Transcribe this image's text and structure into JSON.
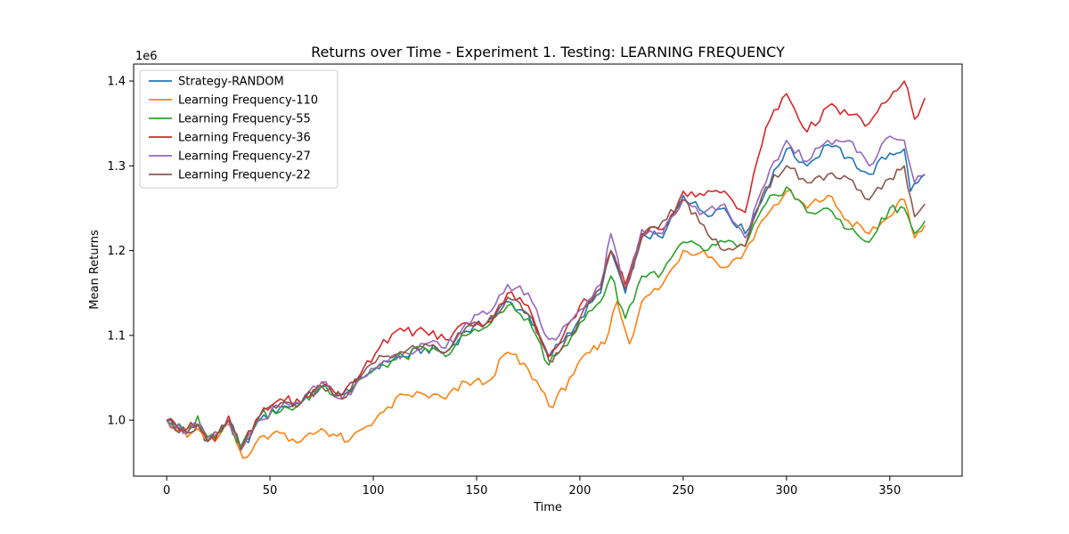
{
  "chart_data": {
    "type": "line",
    "title": "Returns over Time - Experiment 1. Testing: LEARNING FREQUENCY",
    "xlabel": "Time",
    "ylabel": "Mean Returns",
    "offset_label": "1e6",
    "xlim": [
      -16,
      385
    ],
    "ylim": [
      0.934,
      1.42
    ],
    "x_ticks": [
      0,
      50,
      100,
      150,
      200,
      250,
      300,
      350
    ],
    "y_ticks": [
      1.0,
      1.1,
      1.2,
      1.3,
      1.4
    ],
    "y_tick_labels": [
      "1.0",
      "1.1",
      "1.2",
      "1.3",
      "1.4"
    ],
    "grid": false,
    "legend_position": "top-left",
    "series": [
      {
        "name": "Strategy-RANDOM",
        "color": "#1f77b4",
        "points": [
          [
            0,
            1.0
          ],
          [
            10,
            0.985
          ],
          [
            15,
            0.995
          ],
          [
            20,
            0.975
          ],
          [
            25,
            0.985
          ],
          [
            30,
            1.0
          ],
          [
            36,
            0.965
          ],
          [
            45,
            1.0
          ],
          [
            55,
            1.015
          ],
          [
            65,
            1.02
          ],
          [
            75,
            1.04
          ],
          [
            85,
            1.03
          ],
          [
            95,
            1.05
          ],
          [
            105,
            1.07
          ],
          [
            115,
            1.075
          ],
          [
            125,
            1.085
          ],
          [
            135,
            1.08
          ],
          [
            145,
            1.105
          ],
          [
            155,
            1.115
          ],
          [
            165,
            1.14
          ],
          [
            175,
            1.125
          ],
          [
            185,
            1.075
          ],
          [
            190,
            1.09
          ],
          [
            200,
            1.12
          ],
          [
            210,
            1.15
          ],
          [
            215,
            1.2
          ],
          [
            222,
            1.15
          ],
          [
            230,
            1.22
          ],
          [
            240,
            1.215
          ],
          [
            250,
            1.265
          ],
          [
            260,
            1.245
          ],
          [
            270,
            1.25
          ],
          [
            280,
            1.22
          ],
          [
            290,
            1.27
          ],
          [
            300,
            1.32
          ],
          [
            310,
            1.3
          ],
          [
            320,
            1.325
          ],
          [
            330,
            1.31
          ],
          [
            340,
            1.29
          ],
          [
            350,
            1.315
          ],
          [
            357,
            1.32
          ],
          [
            360,
            1.27
          ],
          [
            367,
            1.29
          ]
        ]
      },
      {
        "name": "Learning Frequency-110",
        "color": "#ff7f0e",
        "points": [
          [
            0,
            1.0
          ],
          [
            10,
            0.98
          ],
          [
            15,
            0.99
          ],
          [
            20,
            0.975
          ],
          [
            25,
            0.98
          ],
          [
            30,
            0.995
          ],
          [
            37,
            0.955
          ],
          [
            45,
            0.98
          ],
          [
            55,
            0.985
          ],
          [
            65,
            0.975
          ],
          [
            75,
            0.99
          ],
          [
            88,
            0.975
          ],
          [
            95,
            0.99
          ],
          [
            105,
            1.01
          ],
          [
            115,
            1.03
          ],
          [
            125,
            1.03
          ],
          [
            135,
            1.025
          ],
          [
            145,
            1.045
          ],
          [
            155,
            1.045
          ],
          [
            165,
            1.08
          ],
          [
            175,
            1.06
          ],
          [
            187,
            1.015
          ],
          [
            195,
            1.05
          ],
          [
            205,
            1.08
          ],
          [
            212,
            1.09
          ],
          [
            218,
            1.14
          ],
          [
            224,
            1.09
          ],
          [
            230,
            1.14
          ],
          [
            240,
            1.16
          ],
          [
            250,
            1.2
          ],
          [
            260,
            1.2
          ],
          [
            270,
            1.18
          ],
          [
            280,
            1.2
          ],
          [
            290,
            1.24
          ],
          [
            300,
            1.27
          ],
          [
            310,
            1.25
          ],
          [
            320,
            1.265
          ],
          [
            330,
            1.235
          ],
          [
            340,
            1.22
          ],
          [
            350,
            1.24
          ],
          [
            357,
            1.26
          ],
          [
            362,
            1.215
          ],
          [
            367,
            1.23
          ]
        ]
      },
      {
        "name": "Learning Frequency-55",
        "color": "#2ca02c",
        "points": [
          [
            0,
            1.0
          ],
          [
            10,
            0.985
          ],
          [
            15,
            1.005
          ],
          [
            20,
            0.98
          ],
          [
            25,
            0.985
          ],
          [
            30,
            1.0
          ],
          [
            36,
            0.97
          ],
          [
            45,
            1.005
          ],
          [
            55,
            1.01
          ],
          [
            65,
            1.02
          ],
          [
            75,
            1.04
          ],
          [
            85,
            1.03
          ],
          [
            95,
            1.05
          ],
          [
            105,
            1.065
          ],
          [
            115,
            1.075
          ],
          [
            125,
            1.085
          ],
          [
            135,
            1.075
          ],
          [
            145,
            1.1
          ],
          [
            155,
            1.11
          ],
          [
            165,
            1.135
          ],
          [
            175,
            1.12
          ],
          [
            185,
            1.065
          ],
          [
            190,
            1.08
          ],
          [
            200,
            1.115
          ],
          [
            210,
            1.14
          ],
          [
            215,
            1.17
          ],
          [
            222,
            1.12
          ],
          [
            230,
            1.17
          ],
          [
            240,
            1.175
          ],
          [
            250,
            1.21
          ],
          [
            260,
            1.2
          ],
          [
            270,
            1.21
          ],
          [
            280,
            1.205
          ],
          [
            290,
            1.255
          ],
          [
            300,
            1.275
          ],
          [
            310,
            1.245
          ],
          [
            320,
            1.25
          ],
          [
            330,
            1.225
          ],
          [
            340,
            1.21
          ],
          [
            350,
            1.25
          ],
          [
            357,
            1.25
          ],
          [
            362,
            1.22
          ],
          [
            367,
            1.235
          ]
        ]
      },
      {
        "name": "Learning Frequency-36",
        "color": "#d62728",
        "points": [
          [
            0,
            1.0
          ],
          [
            10,
            0.99
          ],
          [
            15,
            0.995
          ],
          [
            20,
            0.975
          ],
          [
            25,
            0.985
          ],
          [
            30,
            1.005
          ],
          [
            36,
            0.965
          ],
          [
            45,
            1.005
          ],
          [
            55,
            1.025
          ],
          [
            65,
            1.02
          ],
          [
            75,
            1.045
          ],
          [
            85,
            1.03
          ],
          [
            95,
            1.06
          ],
          [
            105,
            1.095
          ],
          [
            115,
            1.105
          ],
          [
            125,
            1.105
          ],
          [
            135,
            1.095
          ],
          [
            145,
            1.115
          ],
          [
            155,
            1.115
          ],
          [
            165,
            1.15
          ],
          [
            175,
            1.135
          ],
          [
            185,
            1.075
          ],
          [
            190,
            1.09
          ],
          [
            200,
            1.135
          ],
          [
            210,
            1.155
          ],
          [
            215,
            1.2
          ],
          [
            222,
            1.16
          ],
          [
            230,
            1.22
          ],
          [
            240,
            1.225
          ],
          [
            250,
            1.27
          ],
          [
            260,
            1.265
          ],
          [
            270,
            1.27
          ],
          [
            280,
            1.245
          ],
          [
            290,
            1.345
          ],
          [
            300,
            1.385
          ],
          [
            310,
            1.34
          ],
          [
            320,
            1.37
          ],
          [
            330,
            1.36
          ],
          [
            340,
            1.35
          ],
          [
            350,
            1.38
          ],
          [
            357,
            1.4
          ],
          [
            362,
            1.355
          ],
          [
            367,
            1.38
          ]
        ]
      },
      {
        "name": "Learning Frequency-27",
        "color": "#9467bd",
        "points": [
          [
            0,
            1.0
          ],
          [
            10,
            0.985
          ],
          [
            15,
            0.995
          ],
          [
            20,
            0.975
          ],
          [
            25,
            0.985
          ],
          [
            30,
            1.0
          ],
          [
            36,
            0.965
          ],
          [
            45,
            1.0
          ],
          [
            55,
            1.015
          ],
          [
            65,
            1.02
          ],
          [
            75,
            1.045
          ],
          [
            85,
            1.025
          ],
          [
            95,
            1.05
          ],
          [
            105,
            1.07
          ],
          [
            115,
            1.08
          ],
          [
            125,
            1.09
          ],
          [
            135,
            1.085
          ],
          [
            145,
            1.115
          ],
          [
            155,
            1.125
          ],
          [
            165,
            1.16
          ],
          [
            175,
            1.15
          ],
          [
            185,
            1.095
          ],
          [
            190,
            1.1
          ],
          [
            200,
            1.13
          ],
          [
            210,
            1.16
          ],
          [
            215,
            1.22
          ],
          [
            222,
            1.155
          ],
          [
            230,
            1.225
          ],
          [
            240,
            1.22
          ],
          [
            250,
            1.26
          ],
          [
            260,
            1.245
          ],
          [
            270,
            1.255
          ],
          [
            280,
            1.215
          ],
          [
            290,
            1.28
          ],
          [
            300,
            1.33
          ],
          [
            310,
            1.305
          ],
          [
            320,
            1.33
          ],
          [
            330,
            1.33
          ],
          [
            340,
            1.3
          ],
          [
            350,
            1.335
          ],
          [
            357,
            1.33
          ],
          [
            362,
            1.28
          ],
          [
            367,
            1.29
          ]
        ]
      },
      {
        "name": "Learning Frequency-22",
        "color": "#8c564b",
        "points": [
          [
            0,
            1.0
          ],
          [
            10,
            0.985
          ],
          [
            15,
            0.995
          ],
          [
            20,
            0.975
          ],
          [
            25,
            0.985
          ],
          [
            30,
            1.0
          ],
          [
            36,
            0.965
          ],
          [
            45,
            1.005
          ],
          [
            55,
            1.02
          ],
          [
            65,
            1.02
          ],
          [
            75,
            1.04
          ],
          [
            85,
            1.025
          ],
          [
            95,
            1.055
          ],
          [
            105,
            1.075
          ],
          [
            115,
            1.08
          ],
          [
            125,
            1.09
          ],
          [
            135,
            1.08
          ],
          [
            145,
            1.11
          ],
          [
            155,
            1.115
          ],
          [
            165,
            1.145
          ],
          [
            175,
            1.125
          ],
          [
            185,
            1.07
          ],
          [
            190,
            1.08
          ],
          [
            200,
            1.12
          ],
          [
            210,
            1.155
          ],
          [
            215,
            1.2
          ],
          [
            222,
            1.155
          ],
          [
            230,
            1.215
          ],
          [
            240,
            1.235
          ],
          [
            250,
            1.26
          ],
          [
            260,
            1.23
          ],
          [
            270,
            1.2
          ],
          [
            280,
            1.205
          ],
          [
            290,
            1.275
          ],
          [
            300,
            1.3
          ],
          [
            310,
            1.28
          ],
          [
            320,
            1.29
          ],
          [
            330,
            1.285
          ],
          [
            340,
            1.26
          ],
          [
            350,
            1.285
          ],
          [
            357,
            1.3
          ],
          [
            362,
            1.24
          ],
          [
            367,
            1.255
          ]
        ]
      }
    ]
  }
}
